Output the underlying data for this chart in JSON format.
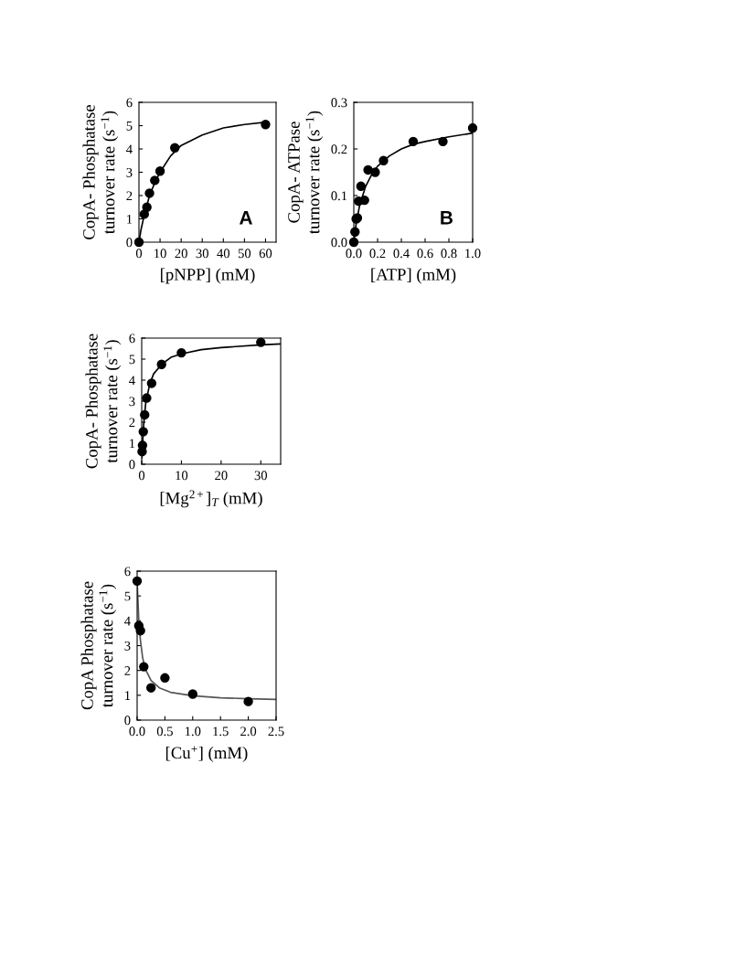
{
  "chart_data": [
    {
      "type": "scatter",
      "xlabel": "[pNPP] (mM)",
      "ylabel": "CopA- Phosphatase\nturnover rate (s$^{−1}$)",
      "annotations": [
        "A"
      ],
      "xlim": [
        0,
        65
      ],
      "xticks": [
        0,
        10,
        20,
        30,
        40,
        50,
        60
      ],
      "ylim": [
        0,
        6
      ],
      "yticks": [
        0,
        1,
        2,
        3,
        4,
        5,
        6
      ],
      "grid": false,
      "legend": false,
      "series": [
        {
          "marker": "circle",
          "color": "#000000",
          "x": [
            0,
            2.5,
            3.75,
            5,
            7.5,
            10,
            17,
            60
          ],
          "values": [
            0,
            1.2,
            1.5,
            2.1,
            2.65,
            3.05,
            4.05,
            5.05
          ]
        },
        {
          "type": "line",
          "marker": "none",
          "color": "#000000",
          "x": [
            0,
            1,
            2.5,
            5,
            7.5,
            10,
            15,
            20,
            30,
            40,
            50,
            60
          ],
          "values": [
            0,
            0.55,
            1.15,
            2.0,
            2.55,
            3.0,
            3.7,
            4.15,
            4.6,
            4.9,
            5.05,
            5.15
          ]
        }
      ]
    },
    {
      "type": "scatter",
      "xlabel": "[ATP] (mM)",
      "ylabel": "CopA- ATPase\nturnover rate (s$^{−1}$)",
      "annotations": [
        "B"
      ],
      "xlim": [
        0,
        1.0
      ],
      "xticks": [
        {
          "value": 0,
          "label": "0.0"
        },
        0.2,
        0.4,
        0.6,
        0.8,
        {
          "value": 1.0,
          "label": "1.0"
        }
      ],
      "ylim": [
        0,
        0.3
      ],
      "yticks": [
        {
          "value": 0,
          "label": "0.0"
        },
        0.1,
        0.2,
        0.3
      ],
      "grid": false,
      "legend": false,
      "series": [
        {
          "marker": "circle",
          "color": "#000000",
          "x": [
            0,
            0.01,
            0.02,
            0.03,
            0.04,
            0.06,
            0.09,
            0.12,
            0.18,
            0.25,
            0.5,
            0.75,
            1.0
          ],
          "values": [
            0,
            0.022,
            0.05,
            0.052,
            0.088,
            0.12,
            0.09,
            0.155,
            0.15,
            0.175,
            0.216,
            0.216,
            0.245
          ]
        },
        {
          "type": "line",
          "marker": "none",
          "color": "#000000",
          "x": [
            0,
            0.02,
            0.05,
            0.1,
            0.15,
            0.2,
            0.3,
            0.4,
            0.5,
            0.6,
            0.8,
            1.0
          ],
          "values": [
            0,
            0.04,
            0.08,
            0.12,
            0.145,
            0.163,
            0.185,
            0.2,
            0.21,
            0.216,
            0.226,
            0.234
          ]
        }
      ]
    },
    {
      "type": "scatter",
      "xlabel": "[Mg$^{2+}$]$_{T}$ (mM)",
      "ylabel": "CopA- Phosphatase\nturnover rate (s$^{−1}$)",
      "xlim": [
        0,
        35
      ],
      "xticks": [
        0,
        10,
        20,
        30
      ],
      "ylim": [
        0,
        6
      ],
      "yticks": [
        0,
        1,
        2,
        3,
        4,
        5,
        6
      ],
      "grid": false,
      "legend": false,
      "series": [
        {
          "marker": "circle",
          "color": "#000000",
          "x": [
            0.1,
            0.2,
            0.4,
            0.75,
            1.25,
            2.5,
            5,
            10,
            30
          ],
          "values": [
            0.6,
            0.9,
            1.55,
            2.35,
            3.15,
            3.85,
            4.75,
            5.3,
            5.8
          ]
        },
        {
          "type": "line",
          "marker": "none",
          "color": "#000000",
          "x": [
            0.05,
            0.2,
            0.5,
            1,
            2,
            3,
            5,
            7.5,
            10,
            15,
            20,
            30,
            35
          ],
          "values": [
            0.3,
            0.9,
            1.9,
            2.9,
            3.8,
            4.3,
            4.75,
            5.1,
            5.25,
            5.45,
            5.55,
            5.68,
            5.72
          ]
        }
      ]
    },
    {
      "type": "scatter",
      "xlabel": "[Cu$^{+}$] (mM)",
      "ylabel": "CopA Phosphatase\nturnover rate (s$^{−1}$)",
      "xlim": [
        0,
        2.5
      ],
      "xticks": [
        {
          "value": 0,
          "label": "0.0"
        },
        0.5,
        {
          "value": 1.0,
          "label": "1.0"
        },
        1.5,
        {
          "value": 2.0,
          "label": "2.0"
        },
        2.5
      ],
      "ylim": [
        0,
        6
      ],
      "yticks": [
        0,
        1,
        2,
        3,
        4,
        5,
        6
      ],
      "grid": false,
      "legend": false,
      "series": [
        {
          "marker": "circle",
          "color": "#000000",
          "x": [
            0,
            0.03,
            0.06,
            0.12,
            0.25,
            0.5,
            1.0,
            2.0
          ],
          "values": [
            5.6,
            3.8,
            3.6,
            2.15,
            1.3,
            1.7,
            1.05,
            0.75
          ]
        },
        {
          "type": "line",
          "marker": "none",
          "color": "#555555",
          "x": [
            0,
            0.03,
            0.06,
            0.1,
            0.15,
            0.25,
            0.4,
            0.6,
            1.0,
            1.5,
            2.0,
            2.5
          ],
          "values": [
            5.6,
            4.0,
            3.2,
            2.5,
            2.05,
            1.6,
            1.3,
            1.12,
            0.98,
            0.9,
            0.86,
            0.83
          ]
        }
      ]
    }
  ]
}
